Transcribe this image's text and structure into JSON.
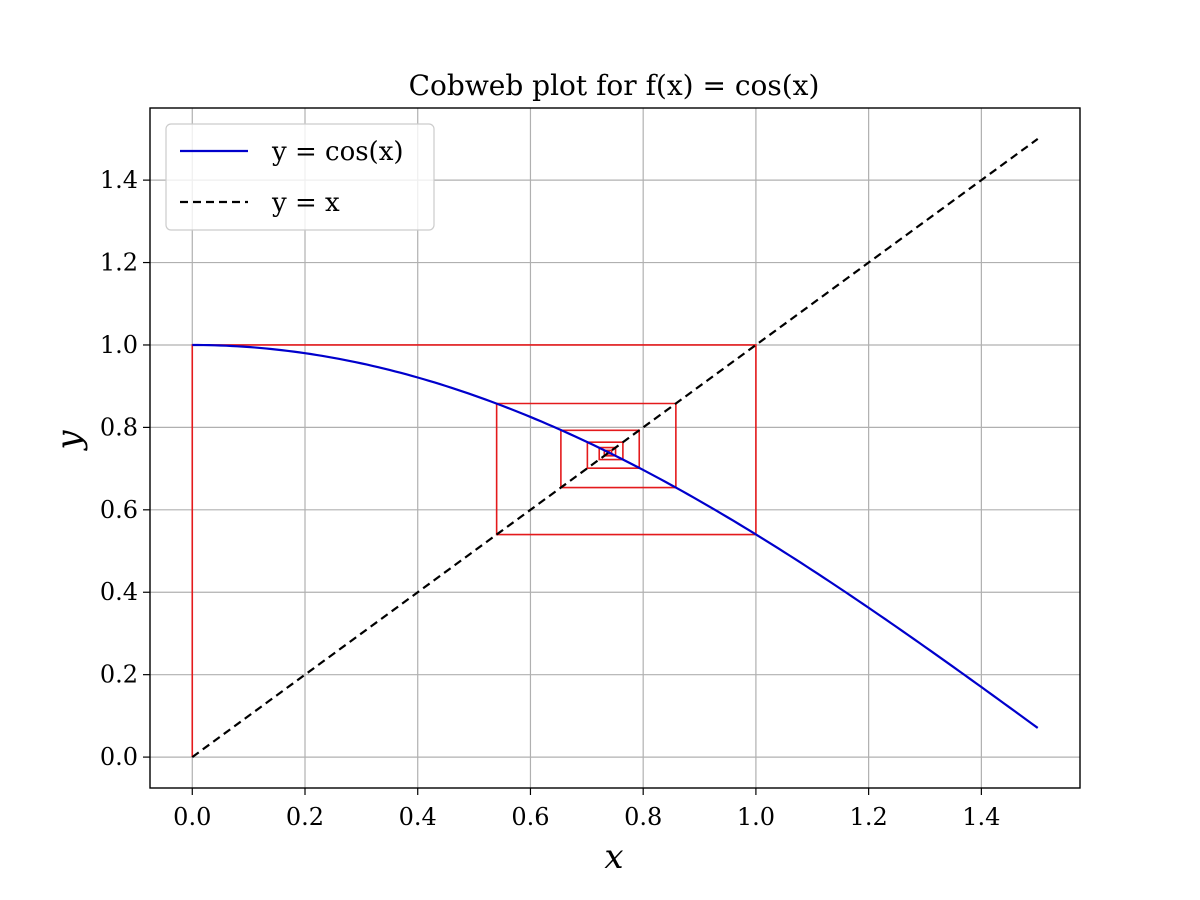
{
  "chart_data": {
    "type": "line",
    "title": "Cobweb plot for f(x) = cos(x)",
    "xlabel": "x",
    "ylabel": "y",
    "xlim": [
      -0.075,
      1.575
    ],
    "ylim": [
      -0.075,
      1.575
    ],
    "xticks": [
      "0.0",
      "0.2",
      "0.4",
      "0.6",
      "0.8",
      "1.0",
      "1.2",
      "1.4"
    ],
    "yticks": [
      "0.0",
      "0.2",
      "0.4",
      "0.6",
      "0.8",
      "1.0",
      "1.2",
      "1.4"
    ],
    "grid": true,
    "legend_position": "top-left",
    "series": [
      {
        "name": "y = cos(x)",
        "style": "solid",
        "color": "#0000cc",
        "x": [
          0.0,
          0.1,
          0.2,
          0.3,
          0.4,
          0.5,
          0.6,
          0.7,
          0.8,
          0.9,
          1.0,
          1.1,
          1.2,
          1.3,
          1.4,
          1.5
        ],
        "y": [
          1.0,
          0.995,
          0.98,
          0.955,
          0.921,
          0.878,
          0.825,
          0.765,
          0.697,
          0.622,
          0.54,
          0.454,
          0.362,
          0.267,
          0.17,
          0.071
        ]
      },
      {
        "name": "y = x",
        "style": "dashed",
        "color": "#000000",
        "x": [
          0.0,
          1.5
        ],
        "y": [
          0.0,
          1.5
        ]
      },
      {
        "name": "",
        "style": "solid",
        "color": "#e41a1c",
        "x": [
          0.0,
          0.0,
          1.0,
          1.0,
          0.54,
          0.54,
          0.858,
          0.858,
          0.654,
          0.654,
          0.793,
          0.793,
          0.701,
          0.701,
          0.764,
          0.764,
          0.722,
          0.722,
          0.751,
          0.751,
          0.731,
          0.731,
          0.744,
          0.744,
          0.736,
          0.736,
          0.741
        ],
        "y": [
          0.0,
          1.0,
          1.0,
          0.54,
          0.54,
          0.858,
          0.858,
          0.654,
          0.654,
          0.793,
          0.793,
          0.701,
          0.701,
          0.764,
          0.764,
          0.722,
          0.722,
          0.751,
          0.751,
          0.731,
          0.731,
          0.744,
          0.744,
          0.736,
          0.736,
          0.741,
          0.741
        ]
      }
    ]
  }
}
